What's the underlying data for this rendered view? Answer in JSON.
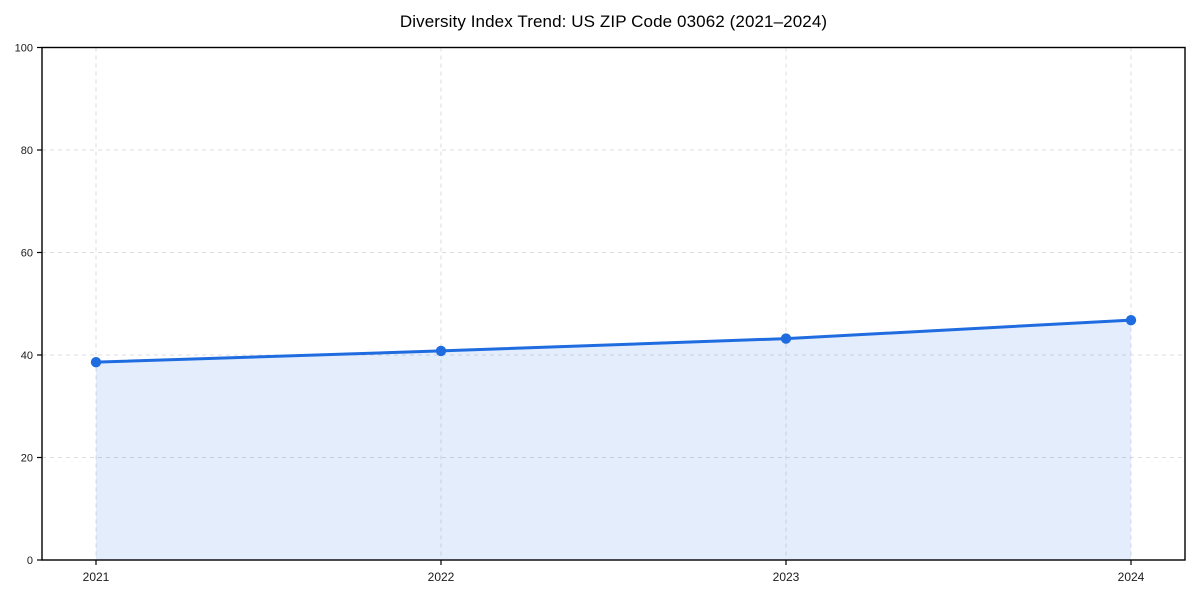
{
  "figure": {
    "background": "#ffffff"
  },
  "chart_data": {
    "type": "line",
    "title": "Diversity Index Trend: US ZIP Code 03062 (2021–2024)",
    "x": [
      "2021",
      "2022",
      "2023",
      "2024"
    ],
    "series": [
      {
        "name": "Diversity Index",
        "values": [
          38.6,
          40.8,
          43.2,
          46.8
        ]
      }
    ],
    "xlabel": "",
    "ylabel": "",
    "ylim": [
      0,
      100
    ],
    "yticks": [
      0,
      20,
      40,
      60,
      80,
      100
    ],
    "grid": "dashed, horizontal and vertical",
    "legend_position": "none",
    "area_fill": true,
    "markers": "circle",
    "colors": {
      "line": "#1f6ce0",
      "marker": "#1f6ce0",
      "area": "#1f6ce0",
      "area_opacity": 0.12,
      "grid": "#dcdcdc",
      "axis_frame": "#000000",
      "tick_label": "#1a1a1a",
      "title": "#000000"
    }
  }
}
